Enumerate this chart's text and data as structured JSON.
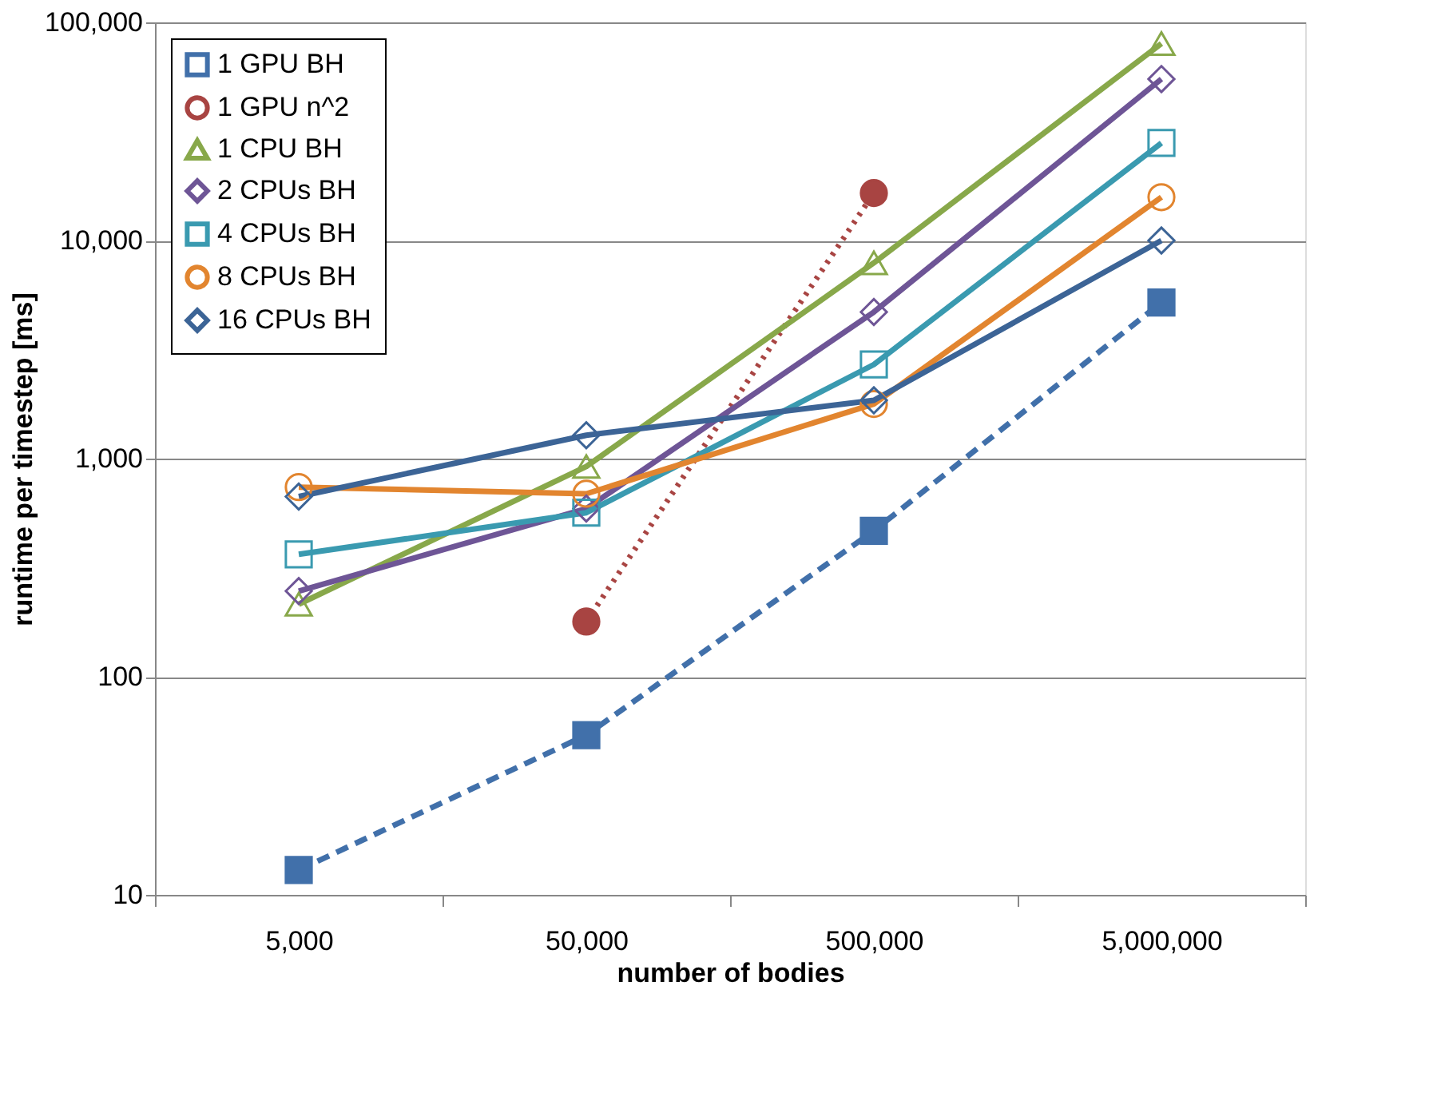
{
  "chart_data": {
    "type": "line",
    "xlabel": "number of bodies",
    "ylabel": "runtime per timestep [ms]",
    "categories": [
      "5,000",
      "50,000",
      "500,000",
      "5,000,000"
    ],
    "log": true,
    "ylim": [
      10,
      100000
    ],
    "yticks": [
      {
        "value": 10,
        "label": "10"
      },
      {
        "value": 100,
        "label": "100"
      },
      {
        "value": 1000,
        "label": "1,000"
      },
      {
        "value": 10000,
        "label": "10,000"
      },
      {
        "value": 100000,
        "label": "100,000"
      }
    ],
    "grid": "y",
    "legend": "top left",
    "series": [
      {
        "name": "1 GPU BH",
        "color": "#4170aa",
        "marker": "square",
        "line_style": "dashed",
        "values": [
          13,
          54,
          467,
          5200
        ]
      },
      {
        "name": "1 GPU n^2",
        "color": "#a84442",
        "marker": "circle",
        "line_style": "dotted",
        "values": [
          null,
          179,
          16500,
          null
        ]
      },
      {
        "name": "1 CPU BH",
        "color": "#88a84a",
        "marker": "triangle",
        "line_style": "solid",
        "values": [
          215,
          920,
          7900,
          80000
        ]
      },
      {
        "name": "2 CPUs BH",
        "color": "#6e5596",
        "marker": "diamond",
        "line_style": "solid",
        "values": [
          247,
          590,
          4700,
          55000
        ]
      },
      {
        "name": "4 CPUs BH",
        "color": "#3a9ab0",
        "marker": "square",
        "line_style": "solid",
        "values": [
          364,
          565,
          2700,
          28000
        ]
      },
      {
        "name": "8 CPUs BH",
        "color": "#e2852f",
        "marker": "circle",
        "line_style": "solid",
        "values": [
          740,
          690,
          1780,
          15800
        ]
      },
      {
        "name": "16 CPUs BH",
        "color": "#3c6496",
        "marker": "diamond",
        "line_style": "solid",
        "values": [
          670,
          1280,
          1850,
          10000
        ]
      }
    ]
  }
}
